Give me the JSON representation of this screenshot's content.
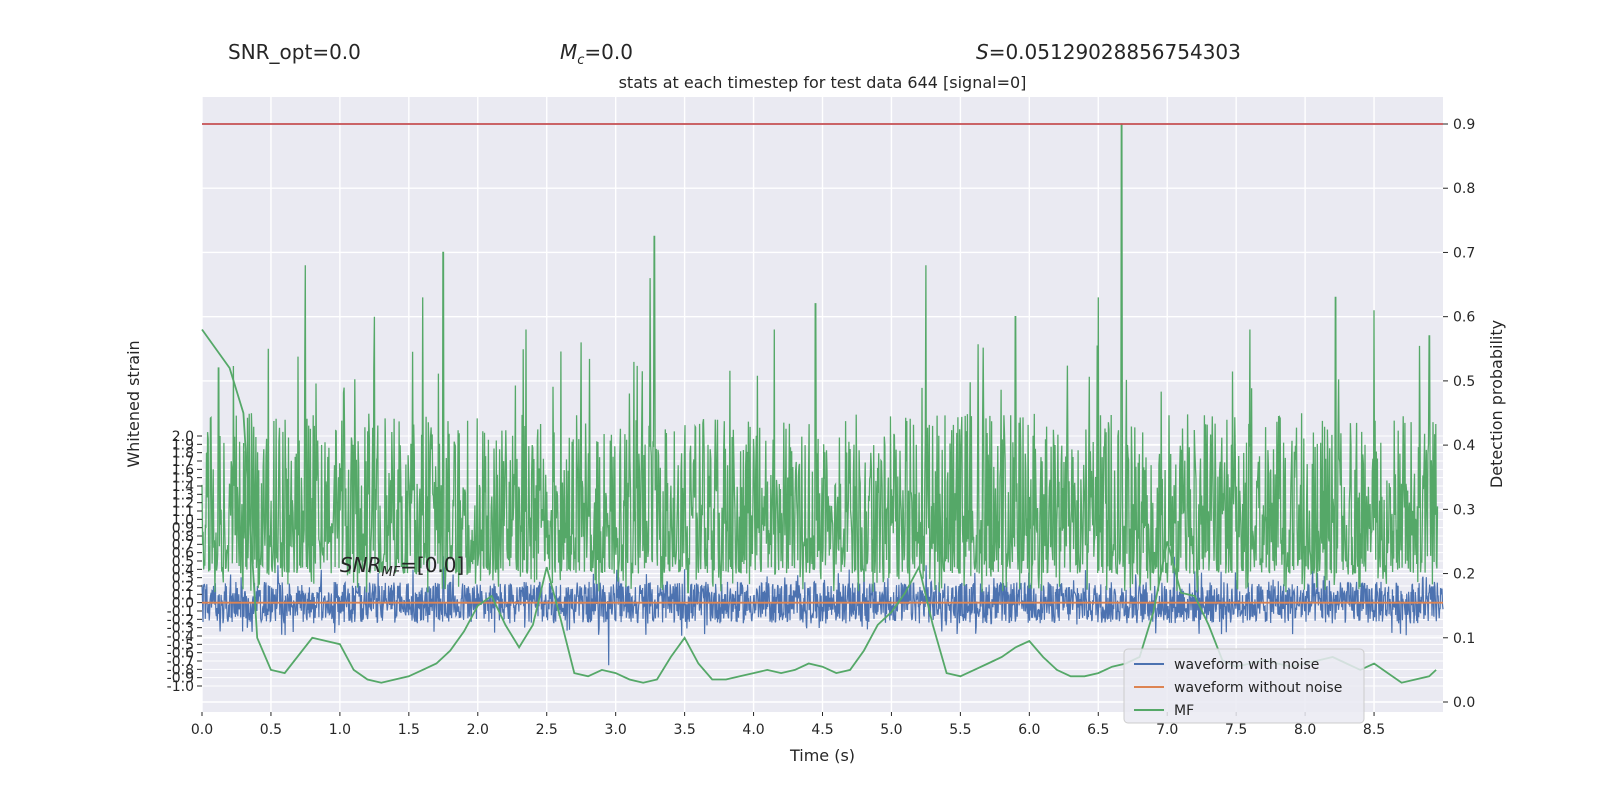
{
  "header": {
    "snr_opt_label": "SNR_opt=0.0",
    "mc_symbol": "M",
    "mc_sub": "c",
    "mc_value": "=0.0",
    "s_symbol": "S",
    "s_value": "=0.05129028856754303"
  },
  "chart_data": {
    "type": "line",
    "title": "stats at each timestep for test data 644 [signal=0]",
    "xlabel": "Time (s)",
    "ylabel_left": "Whitened strain",
    "ylabel_right": "Detection probability",
    "xlim": [
      0.0,
      9.0
    ],
    "x_ticks": [
      "0.0",
      "0.5",
      "1.0",
      "1.5",
      "2.0",
      "2.5",
      "3.0",
      "3.5",
      "4.0",
      "4.5",
      "5.0",
      "5.5",
      "6.0",
      "6.5",
      "7.0",
      "7.5",
      "8.0",
      "8.5"
    ],
    "left_ylim": [
      -1.0,
      2.0
    ],
    "left_ticks": [
      "-1.0",
      "-0.9",
      "-0.8",
      "-0.7",
      "-0.6",
      "-0.5",
      "-0.4",
      "-0.3",
      "-0.2",
      "-0.1",
      "0.0",
      "0.1",
      "0.2",
      "0.3",
      "0.4",
      "0.5",
      "0.6",
      "0.7",
      "0.8",
      "0.9",
      "1.0",
      "1.1",
      "1.2",
      "1.3",
      "1.4",
      "1.5",
      "1.6",
      "1.7",
      "1.8",
      "1.9",
      "2.0"
    ],
    "right_ylim": [
      0.0,
      0.9
    ],
    "right_ticks": [
      "0.0",
      "0.1",
      "0.2",
      "0.3",
      "0.4",
      "0.5",
      "0.6",
      "0.7",
      "0.8",
      "0.9"
    ],
    "threshold": 0.9,
    "snr_mf_annotation": {
      "symbol": "SNR",
      "sub": "MF",
      "value": "=[0.0]",
      "x": 1.0
    },
    "grid": true,
    "legend_position": "bottom-right",
    "series": [
      {
        "name": "waveform with noise",
        "color": "#4c72b0",
        "axis": "left",
        "kind": "noise",
        "x_range": [
          0.0,
          9.0
        ],
        "typical_band": [
          -0.25,
          0.25
        ],
        "peaks": [
          [
            0.55,
            0.45
          ],
          [
            1.75,
            0.55
          ],
          [
            2.95,
            -0.75
          ],
          [
            3.5,
            0.4
          ],
          [
            4.8,
            0.45
          ],
          [
            5.25,
            0.45
          ],
          [
            7.05,
            0.55
          ]
        ]
      },
      {
        "name": "waveform without noise",
        "color": "#dd8452",
        "axis": "left",
        "x": [
          0.0,
          9.0
        ],
        "y": [
          0.0,
          0.0
        ]
      },
      {
        "name": "MF",
        "color": "#55a868",
        "axis": "right",
        "x": [
          0.0,
          0.2,
          0.3,
          0.4,
          0.5,
          0.6,
          0.8,
          0.9,
          1.0,
          1.1,
          1.2,
          1.3,
          1.4,
          1.5,
          1.6,
          1.7,
          1.8,
          1.9,
          2.0,
          2.1,
          2.2,
          2.3,
          2.4,
          2.5,
          2.6,
          2.7,
          2.8,
          2.9,
          3.0,
          3.1,
          3.2,
          3.3,
          3.4,
          3.5,
          3.6,
          3.7,
          3.8,
          3.9,
          4.0,
          4.1,
          4.2,
          4.3,
          4.4,
          4.5,
          4.6,
          4.7,
          4.8,
          4.9,
          5.0,
          5.1,
          5.2,
          5.3,
          5.4,
          5.5,
          5.6,
          5.7,
          5.8,
          5.9,
          6.0,
          6.1,
          6.2,
          6.3,
          6.4,
          6.5,
          6.6,
          6.7,
          6.8,
          6.9,
          7.0,
          7.1,
          7.2,
          7.3,
          7.4,
          7.5,
          7.6,
          7.7,
          7.8,
          7.9,
          8.0,
          8.1,
          8.2,
          8.3,
          8.4,
          8.5,
          8.6,
          8.7,
          8.8,
          8.9,
          8.95
        ],
        "y": [
          0.58,
          0.52,
          0.45,
          0.1,
          0.05,
          0.045,
          0.1,
          0.095,
          0.09,
          0.05,
          0.035,
          0.03,
          0.035,
          0.04,
          0.05,
          0.06,
          0.08,
          0.11,
          0.15,
          0.165,
          0.12,
          0.085,
          0.12,
          0.21,
          0.13,
          0.045,
          0.04,
          0.05,
          0.045,
          0.035,
          0.03,
          0.035,
          0.07,
          0.1,
          0.06,
          0.035,
          0.035,
          0.04,
          0.045,
          0.05,
          0.045,
          0.05,
          0.06,
          0.055,
          0.045,
          0.05,
          0.08,
          0.12,
          0.14,
          0.17,
          0.21,
          0.12,
          0.045,
          0.04,
          0.05,
          0.06,
          0.07,
          0.085,
          0.095,
          0.07,
          0.05,
          0.04,
          0.04,
          0.045,
          0.055,
          0.06,
          0.07,
          0.14,
          0.25,
          0.17,
          0.165,
          0.12,
          0.065,
          0.055,
          0.06,
          0.065,
          0.06,
          0.055,
          0.06,
          0.065,
          0.07,
          0.06,
          0.05,
          0.06,
          0.045,
          0.03,
          0.035,
          0.04,
          0.05
        ],
        "noise_band": [
          0.2,
          0.45
        ],
        "peaks": [
          [
            0.12,
            0.52
          ],
          [
            0.48,
            0.55
          ],
          [
            0.75,
            0.68
          ],
          [
            1.25,
            0.6
          ],
          [
            1.6,
            0.63
          ],
          [
            1.75,
            0.7
          ],
          [
            2.35,
            0.58
          ],
          [
            2.75,
            0.56
          ],
          [
            3.25,
            0.66
          ],
          [
            3.28,
            0.725
          ],
          [
            4.15,
            0.58
          ],
          [
            4.45,
            0.62
          ],
          [
            5.25,
            0.68
          ],
          [
            5.9,
            0.6
          ],
          [
            6.5,
            0.63
          ],
          [
            6.67,
            0.9
          ],
          [
            7.6,
            0.58
          ],
          [
            8.22,
            0.63
          ],
          [
            8.5,
            0.61
          ],
          [
            8.9,
            0.57
          ]
        ]
      }
    ]
  }
}
